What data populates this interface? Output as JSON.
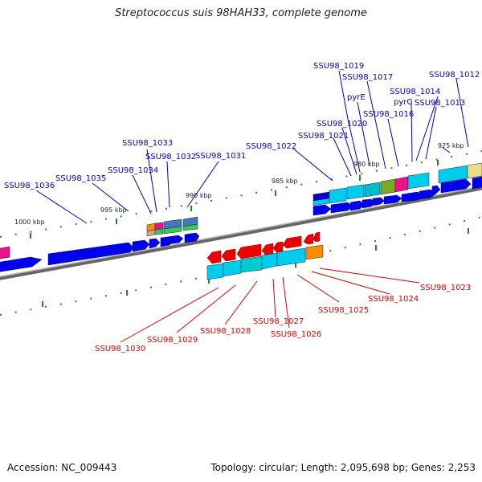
{
  "title": "Streptococcus suis 98HAH33, complete genome",
  "footer": {
    "accession": "Accession: NC_009443",
    "topology": "Topology: circular; Length: 2,095,698 bp; Genes: 2,253"
  },
  "colors": {
    "forward_label": "#0000cc",
    "reverse_label": "#dd0000",
    "backbone": "#777777",
    "tick": "#228822"
  },
  "scale_labels": [
    "1000 kbp",
    "995 kbp",
    "990 kbp",
    "985 kbp",
    "980 kbp",
    "975 kbp"
  ],
  "forward_genes": [
    "SSU98_1036",
    "SSU98_1035",
    "SSU98_1034",
    "SSU98_1033",
    "SSU98_1032",
    "SSU98_1031",
    "SSU98_1022",
    "SSU98_1021",
    "SSU98_1020",
    "SSU98_1019",
    "SSU98_1017",
    "pyrE",
    "SSU98_1016",
    "pyrC",
    "SSU98_1014",
    "SSU98_1013",
    "SSU98_1012"
  ],
  "reverse_genes": [
    "SSU98_1030",
    "SSU98_1029",
    "SSU98_1028",
    "SSU98_1027",
    "SSU98_1026",
    "SSU98_1025",
    "SSU98_1024",
    "SSU98_1023"
  ]
}
